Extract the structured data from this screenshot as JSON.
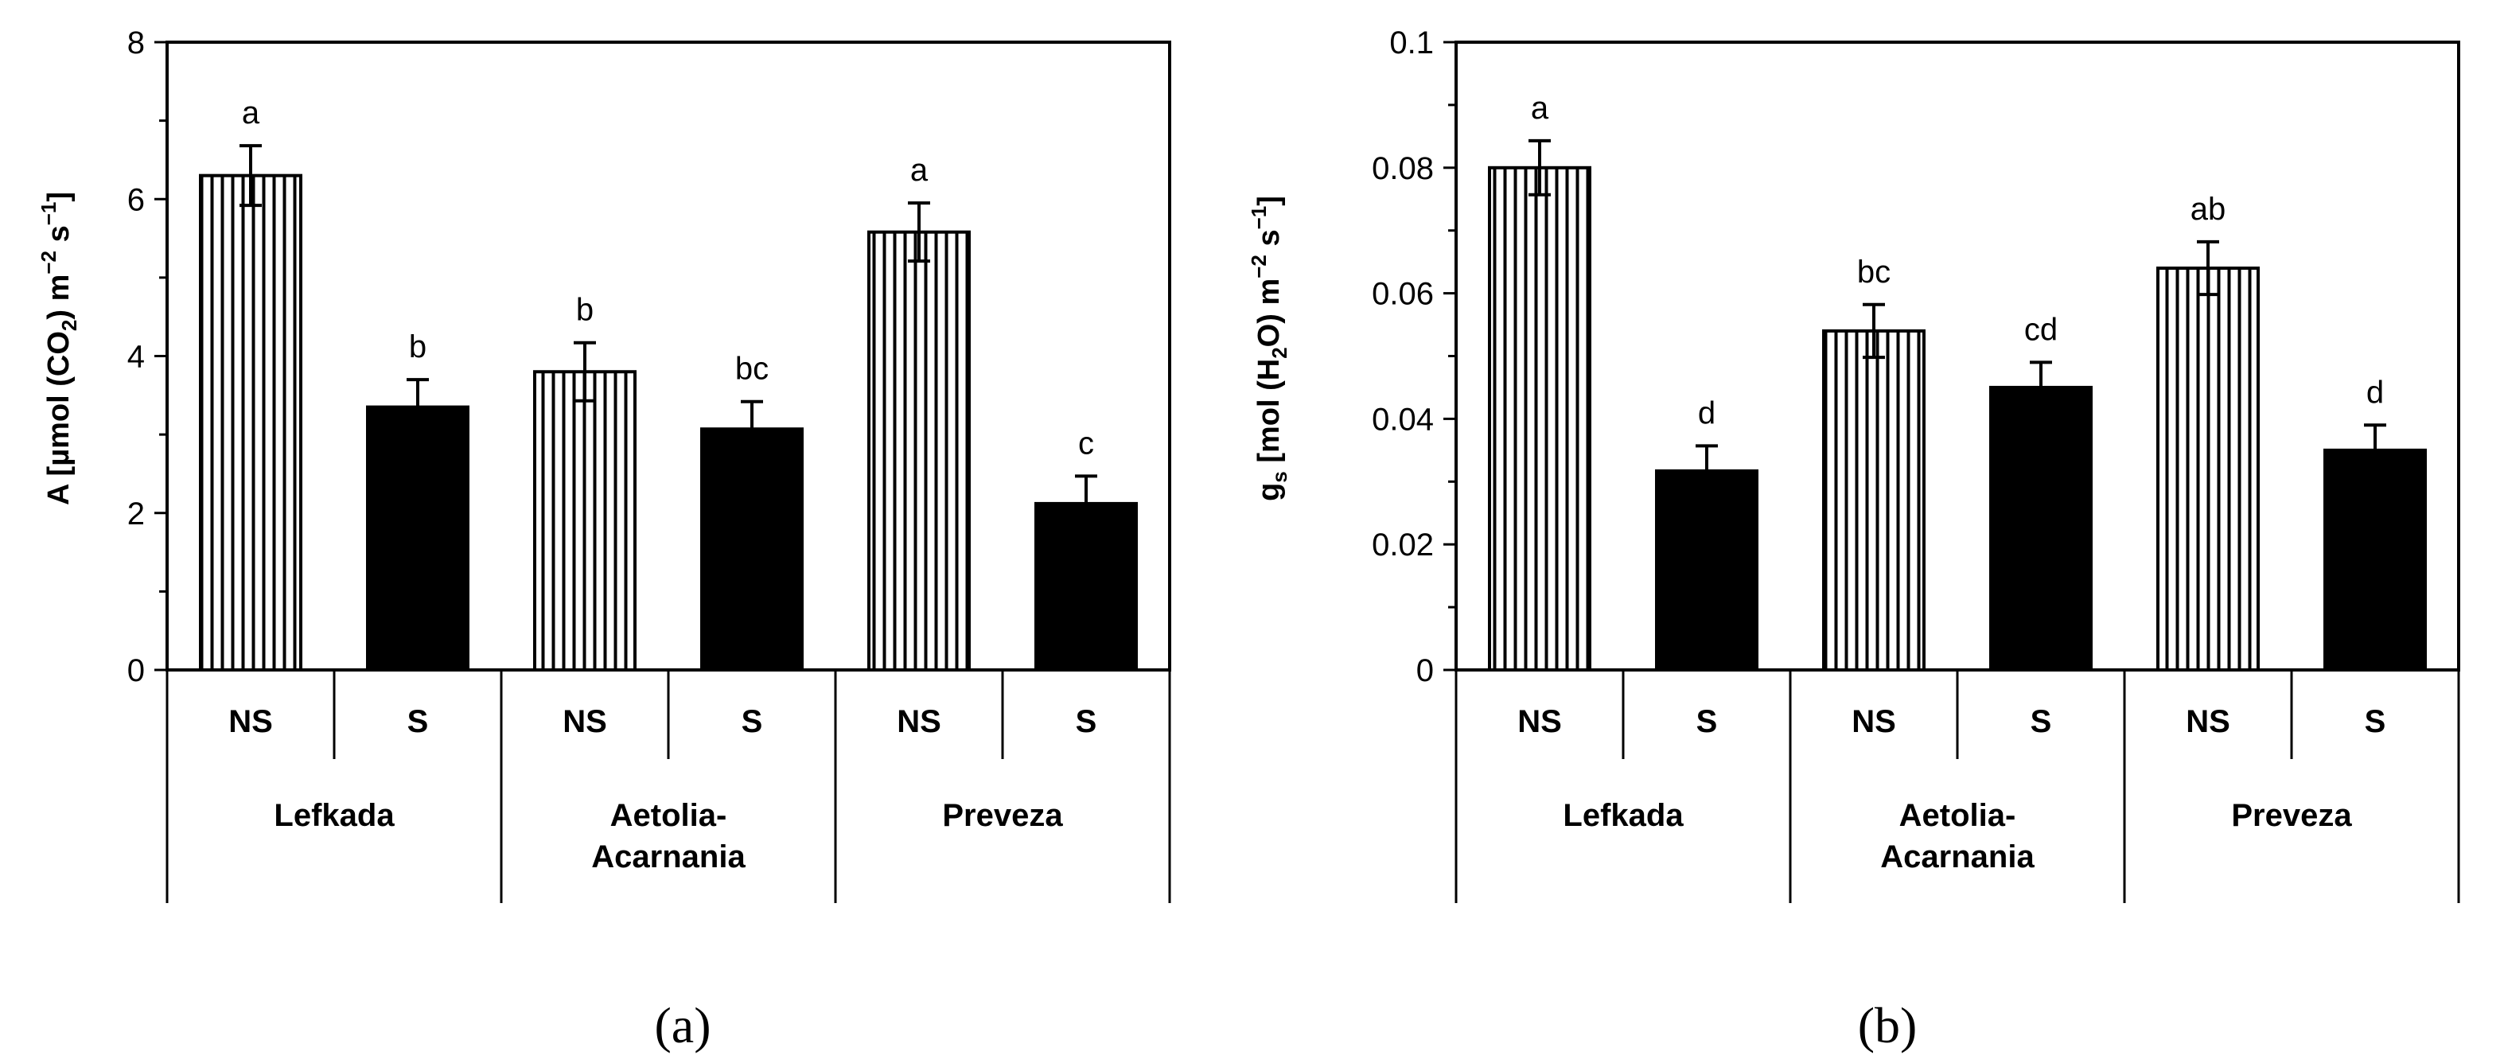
{
  "chart_data": [
    {
      "type": "bar",
      "panel": "(a)",
      "panel_letter": "a",
      "ylabel": {
        "main": "A [µmol (CO",
        "sub": "2",
        "mid": ") m",
        "sup1": "−2",
        "mid2": " s",
        "sup2": "−1",
        "end": "]"
      },
      "ylim": [
        0,
        8
      ],
      "yticks": [
        0,
        2,
        4,
        6,
        8
      ],
      "ytick_labels": [
        "0",
        "2",
        "4",
        "6",
        "8"
      ],
      "groups": [
        "Lefkada",
        "Aetolia-Acarnania",
        "Preveza"
      ],
      "group_lines": [
        [
          "Lefkada"
        ],
        [
          "Aetolia-",
          "Acarnania"
        ],
        [
          "Preveza"
        ]
      ],
      "treatments": [
        "NS",
        "S"
      ],
      "bars": [
        {
          "group": "Lefkada",
          "treatment": "NS",
          "value": 6.3,
          "error": 0.38,
          "letter": "a"
        },
        {
          "group": "Lefkada",
          "treatment": "S",
          "value": 3.35,
          "error": 0.35,
          "letter": "b"
        },
        {
          "group": "Aetolia-Acarnania",
          "treatment": "NS",
          "value": 3.8,
          "error": 0.37,
          "letter": "b"
        },
        {
          "group": "Aetolia-Acarnania",
          "treatment": "S",
          "value": 3.07,
          "error": 0.35,
          "letter": "bc"
        },
        {
          "group": "Preveza",
          "treatment": "NS",
          "value": 5.58,
          "error": 0.37,
          "letter": "a"
        },
        {
          "group": "Preveza",
          "treatment": "S",
          "value": 2.12,
          "error": 0.35,
          "letter": "c"
        }
      ]
    },
    {
      "type": "bar",
      "panel": "(b)",
      "panel_letter": "b",
      "ylabel": {
        "main": "g",
        "sub": "s",
        "mid": " [mol (H",
        "sub2": "2",
        "mid2": "O) m",
        "sup1": "−2",
        "mid3": " s",
        "sup2": "−1",
        "end": "]"
      },
      "ylim": [
        0,
        0.1
      ],
      "yticks": [
        0,
        0.02,
        0.04,
        0.06,
        0.08,
        0.1
      ],
      "ytick_labels": [
        "0",
        "0.02",
        "0.04",
        "0.06",
        "0.08",
        "0.1"
      ],
      "groups": [
        "Lefkada",
        "Aetolia-Acarnania",
        "Preveza"
      ],
      "group_lines": [
        [
          "Lefkada"
        ],
        [
          "Aetolia-",
          "Acarnania"
        ],
        [
          "Preveza"
        ]
      ],
      "treatments": [
        "NS",
        "S"
      ],
      "bars": [
        {
          "group": "Lefkada",
          "treatment": "NS",
          "value": 0.08,
          "error": 0.0043,
          "letter": "a"
        },
        {
          "group": "Lefkada",
          "treatment": "S",
          "value": 0.0317,
          "error": 0.004,
          "letter": "d"
        },
        {
          "group": "Aetolia-Acarnania",
          "treatment": "NS",
          "value": 0.054,
          "error": 0.0042,
          "letter": "bc"
        },
        {
          "group": "Aetolia-Acarnania",
          "treatment": "S",
          "value": 0.045,
          "error": 0.004,
          "letter": "cd"
        },
        {
          "group": "Preveza",
          "treatment": "NS",
          "value": 0.064,
          "error": 0.0042,
          "letter": "ab"
        },
        {
          "group": "Preveza",
          "treatment": "S",
          "value": 0.035,
          "error": 0.004,
          "letter": "d"
        }
      ]
    }
  ],
  "colors": {
    "ns_fill": "#ffffff",
    "s_fill": "#000000",
    "axis": "#000000",
    "hatch": "#000000"
  }
}
